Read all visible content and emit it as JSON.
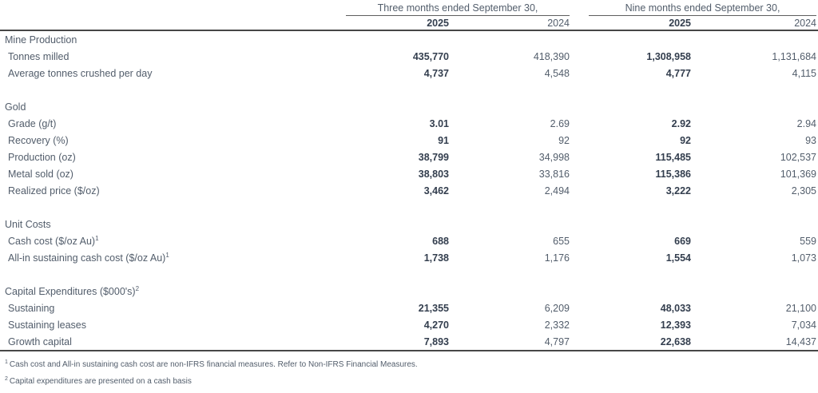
{
  "table": {
    "col_groups": [
      {
        "label": "Three months ended September 30,"
      },
      {
        "label": "Nine months ended September 30,"
      }
    ],
    "year_headers": [
      "2025",
      "2024",
      "2025",
      "2024"
    ],
    "rows": [
      {
        "type": "section",
        "label": "Mine Production",
        "sup": "",
        "v": [
          "",
          "",
          "",
          ""
        ]
      },
      {
        "type": "data",
        "label": "Tonnes milled",
        "sup": "",
        "v": [
          "435,770",
          "418,390",
          "1,308,958",
          "1,131,684"
        ]
      },
      {
        "type": "data",
        "label": "Average tonnes crushed per day",
        "sup": "",
        "v": [
          "4,737",
          "4,548",
          "4,777",
          "4,115"
        ]
      },
      {
        "type": "spacer",
        "label": "",
        "sup": "",
        "v": [
          "",
          "",
          "",
          ""
        ]
      },
      {
        "type": "section",
        "label": "Gold",
        "sup": "",
        "v": [
          "",
          "",
          "",
          ""
        ]
      },
      {
        "type": "data",
        "label": "Grade (g/t)",
        "sup": "",
        "v": [
          "3.01",
          "2.69",
          "2.92",
          "2.94"
        ]
      },
      {
        "type": "data",
        "label": "Recovery (%)",
        "sup": "",
        "v": [
          "91",
          "92",
          "92",
          "93"
        ]
      },
      {
        "type": "data",
        "label": "Production (oz)",
        "sup": "",
        "v": [
          "38,799",
          "34,998",
          "115,485",
          "102,537"
        ]
      },
      {
        "type": "data",
        "label": "Metal sold (oz)",
        "sup": "",
        "v": [
          "38,803",
          "33,816",
          "115,386",
          "101,369"
        ]
      },
      {
        "type": "data",
        "label": "Realized price ($/oz)",
        "sup": "",
        "v": [
          "3,462",
          "2,494",
          "3,222",
          "2,305"
        ]
      },
      {
        "type": "spacer",
        "label": "",
        "sup": "",
        "v": [
          "",
          "",
          "",
          ""
        ]
      },
      {
        "type": "section",
        "label": "Unit Costs",
        "sup": "",
        "v": [
          "",
          "",
          "",
          ""
        ]
      },
      {
        "type": "data",
        "label": "Cash cost ($/oz Au)",
        "sup": "1",
        "v": [
          "688",
          "655",
          "669",
          "559"
        ]
      },
      {
        "type": "data",
        "label": "All-in sustaining cash cost ($/oz Au)",
        "sup": "1",
        "v": [
          "1,738",
          "1,176",
          "1,554",
          "1,073"
        ]
      },
      {
        "type": "spacer",
        "label": "",
        "sup": "",
        "v": [
          "",
          "",
          "",
          ""
        ]
      },
      {
        "type": "section",
        "label": "Capital Expenditures ($000's)",
        "sup": "2",
        "v": [
          "",
          "",
          "",
          ""
        ]
      },
      {
        "type": "data",
        "label": "Sustaining",
        "sup": "",
        "v": [
          "21,355",
          "6,209",
          "48,033",
          "21,100"
        ]
      },
      {
        "type": "data",
        "label": "Sustaining leases",
        "sup": "",
        "v": [
          "4,270",
          "2,332",
          "12,393",
          "7,034"
        ]
      },
      {
        "type": "data",
        "label": "Growth capital",
        "sup": "",
        "v": [
          "7,893",
          "4,797",
          "22,638",
          "14,437"
        ]
      }
    ]
  },
  "footnotes": [
    {
      "marker": "1",
      "text": "Cash cost and All-in sustaining cash cost are non-IFRS financial measures. Refer to Non-IFRS Financial Measures."
    },
    {
      "marker": "2",
      "text": "Capital expenditures are presented on a cash basis"
    }
  ],
  "colors": {
    "text_regular": "#525d6b",
    "text_bold": "#333e4e",
    "rule_dark": "#474747",
    "rule_group": "#5e5e5e",
    "background": "#ffffff"
  }
}
